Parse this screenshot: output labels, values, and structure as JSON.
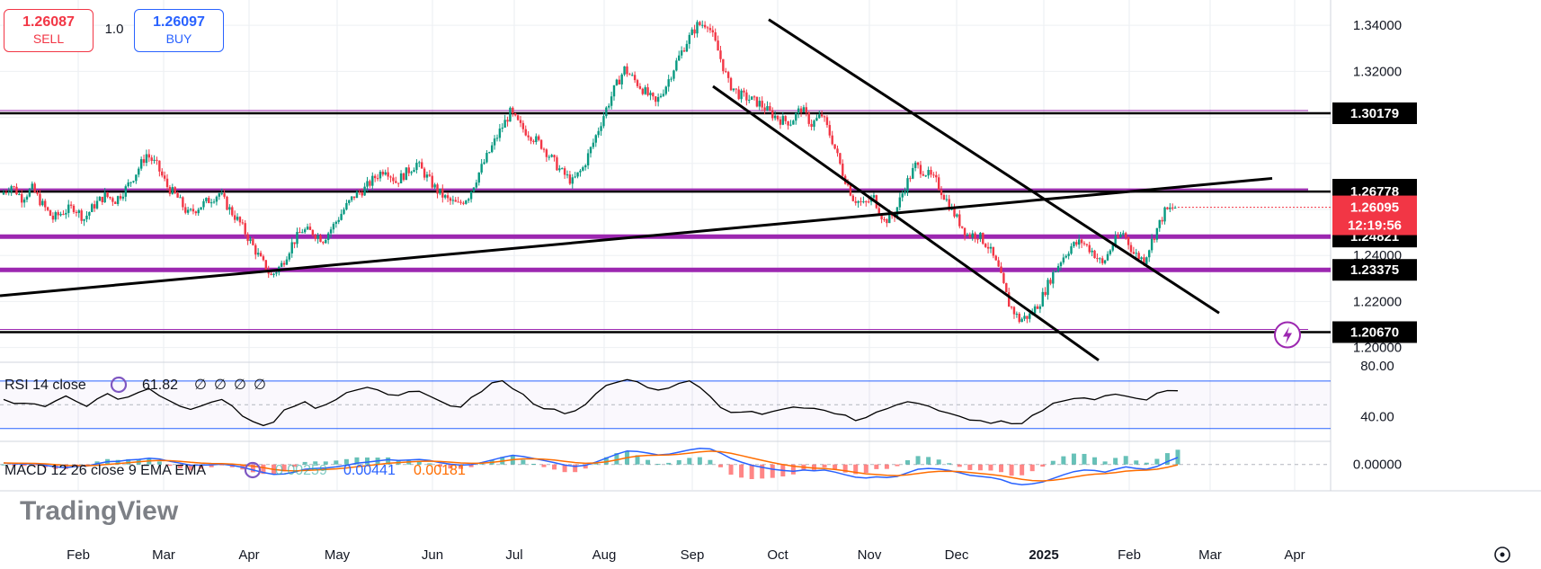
{
  "trade_panel": {
    "sell_price": "1.26087",
    "sell_label": "SELL",
    "lot": "1.0",
    "buy_price": "1.26097",
    "buy_label": "BUY"
  },
  "colors": {
    "bull": "#089981",
    "bear": "#f23645",
    "purple": "#9c27b0",
    "black": "#000000",
    "rsi_band": "#2962ff",
    "macd_line": "#2962ff",
    "signal_line": "#ff6d00"
  },
  "chart_data": {
    "type": "candlestick",
    "price_axis": {
      "range": [
        1.194,
        1.351
      ],
      "ticks": [
        "1.34000",
        "1.32000",
        "1.24000",
        "1.22000",
        "1.20000"
      ]
    },
    "time_axis": [
      "Feb",
      "Mar",
      "Apr",
      "May",
      "Jun",
      "Jul",
      "Aug",
      "Sep",
      "Oct",
      "Nov",
      "Dec",
      "2025",
      "Feb",
      "Mar",
      "Apr"
    ],
    "current_price": "1.26095",
    "countdown": "12:19:56",
    "price_levels": [
      {
        "label": "1.30179",
        "value": 1.30179,
        "style": "black"
      },
      {
        "label": "1.26858",
        "value": 1.26858,
        "style": "purple-thin"
      },
      {
        "label": "1.26778",
        "value": 1.26778,
        "style": "black"
      },
      {
        "label": "1.24821",
        "value": 1.24821,
        "style": "purple"
      },
      {
        "label": "1.23375",
        "value": 1.23375,
        "style": "purple"
      },
      {
        "label": "1.20670",
        "value": 1.2067,
        "style": "black"
      }
    ],
    "ohlc_path": [
      1.2665,
      1.2705,
      1.265,
      1.269,
      1.262,
      1.256,
      1.259,
      1.261,
      1.256,
      1.262,
      1.266,
      1.264,
      1.269,
      1.276,
      1.284,
      1.279,
      1.27,
      1.265,
      1.258,
      1.261,
      1.264,
      1.267,
      1.26,
      1.254,
      1.246,
      1.238,
      1.231,
      1.236,
      1.245,
      1.251,
      1.25,
      1.247,
      1.253,
      1.26,
      1.266,
      1.269,
      1.274,
      1.278,
      1.272,
      1.276,
      1.28,
      1.274,
      1.268,
      1.264,
      1.262,
      1.266,
      1.276,
      1.285,
      1.294,
      1.302,
      1.296,
      1.292,
      1.288,
      1.282,
      1.276,
      1.272,
      1.278,
      1.289,
      1.301,
      1.312,
      1.321,
      1.316,
      1.311,
      1.306,
      1.314,
      1.324,
      1.333,
      1.34,
      1.341,
      1.329,
      1.315,
      1.31,
      1.308,
      1.306,
      1.302,
      1.299,
      1.298,
      1.304,
      1.297,
      1.301,
      1.29,
      1.276,
      1.265,
      1.262,
      1.265,
      1.255,
      1.258,
      1.27,
      1.279,
      1.276,
      1.272,
      1.264,
      1.256,
      1.249,
      1.249,
      1.244,
      1.234,
      1.219,
      1.212,
      1.214,
      1.22,
      1.23,
      1.238,
      1.244,
      1.246,
      1.242,
      1.236,
      1.245,
      1.25,
      1.241,
      1.238,
      1.249,
      1.259,
      1.261
    ],
    "drawings": [
      {
        "name": "long-trendline",
        "from": [
          0,
          1.2225
        ],
        "to": [
          1415,
          1.2735
        ]
      },
      {
        "name": "channel-upper",
        "from": [
          855,
          1.3425
        ],
        "to": [
          1356,
          1.215
        ]
      },
      {
        "name": "channel-lower",
        "from": [
          793,
          1.3135
        ],
        "to": [
          1222,
          1.1945
        ]
      }
    ]
  },
  "rsi": {
    "label": "RSI 14 close",
    "value": "61.82",
    "extras": [
      "∅",
      "∅",
      "∅",
      "∅"
    ],
    "axis_ticks": [
      "80.00",
      "40.00"
    ],
    "upper": 70,
    "lower": 30,
    "series": [
      55,
      52,
      50,
      51,
      48,
      54,
      56,
      53,
      49,
      55,
      58,
      54,
      57,
      60,
      63,
      59,
      52,
      48,
      45,
      50,
      53,
      55,
      48,
      40,
      35,
      33,
      36,
      45,
      50,
      52,
      47,
      50,
      55,
      60,
      64,
      65,
      63,
      60,
      58,
      62,
      60,
      56,
      53,
      50,
      49,
      55,
      62,
      68,
      70,
      64,
      58,
      52,
      48,
      45,
      42,
      44,
      50,
      58,
      65,
      70,
      72,
      68,
      63,
      61,
      65,
      68,
      70,
      66,
      58,
      48,
      45,
      44,
      43,
      42,
      44,
      46,
      47,
      48,
      46,
      45,
      42,
      40,
      38,
      40,
      44,
      46,
      50,
      52,
      50,
      48,
      46,
      44,
      40,
      38,
      36,
      35,
      37,
      35,
      35,
      40,
      44,
      50,
      54,
      56,
      55,
      53,
      57,
      60,
      58,
      55,
      54,
      59,
      62,
      61.82
    ]
  },
  "macd": {
    "label": "MACD 12 26 close 9 EMA EMA",
    "hist_value": "0.00259",
    "macd_value": "0.00441",
    "signal_value": "0.00181",
    "axis_tick": "0.00000",
    "series": [
      0.001,
      0.0005,
      0.0003,
      0.0006,
      -0.0005,
      -0.0015,
      -0.002,
      -0.0012,
      -0.001,
      0.0005,
      0.0018,
      0.002,
      0.0028,
      0.0032,
      0.004,
      0.0035,
      0.002,
      0.0008,
      -0.0005,
      -0.0004,
      -0.0002,
      0.0003,
      -0.0006,
      -0.0018,
      -0.0035,
      -0.005,
      -0.0062,
      -0.006,
      -0.0048,
      -0.003,
      -0.0025,
      -0.0022,
      -0.0015,
      -0.0005,
      0.0008,
      0.0015,
      0.0022,
      0.003,
      0.0025,
      0.0028,
      0.0032,
      0.0025,
      0.0012,
      0.0002,
      -0.0004,
      -0.0001,
      0.0012,
      0.0028,
      0.0045,
      0.0058,
      0.005,
      0.0038,
      0.0025,
      0.0012,
      -0.0004,
      -0.0012,
      -0.0005,
      0.0015,
      0.004,
      0.0065,
      0.0085,
      0.0082,
      0.0072,
      0.006,
      0.0065,
      0.0078,
      0.0092,
      0.0102,
      0.0098,
      0.0072,
      0.0038,
      0.0015,
      -0.0005,
      -0.0018,
      -0.003,
      -0.0038,
      -0.0042,
      -0.0035,
      -0.004,
      -0.0035,
      -0.0048,
      -0.0065,
      -0.008,
      -0.0085,
      -0.0078,
      -0.0082,
      -0.0075,
      -0.0052,
      -0.003,
      -0.0025,
      -0.0028,
      -0.0038,
      -0.0052,
      -0.0068,
      -0.0075,
      -0.0082,
      -0.0095,
      -0.0118,
      -0.0128,
      -0.0122,
      -0.011,
      -0.0088,
      -0.0065,
      -0.0045,
      -0.0035,
      -0.0038,
      -0.0048,
      -0.003,
      -0.0015,
      -0.0025,
      -0.003,
      -0.0012,
      0.0018,
      0.00441
    ]
  },
  "branding": {
    "watermark": "TradingView"
  }
}
